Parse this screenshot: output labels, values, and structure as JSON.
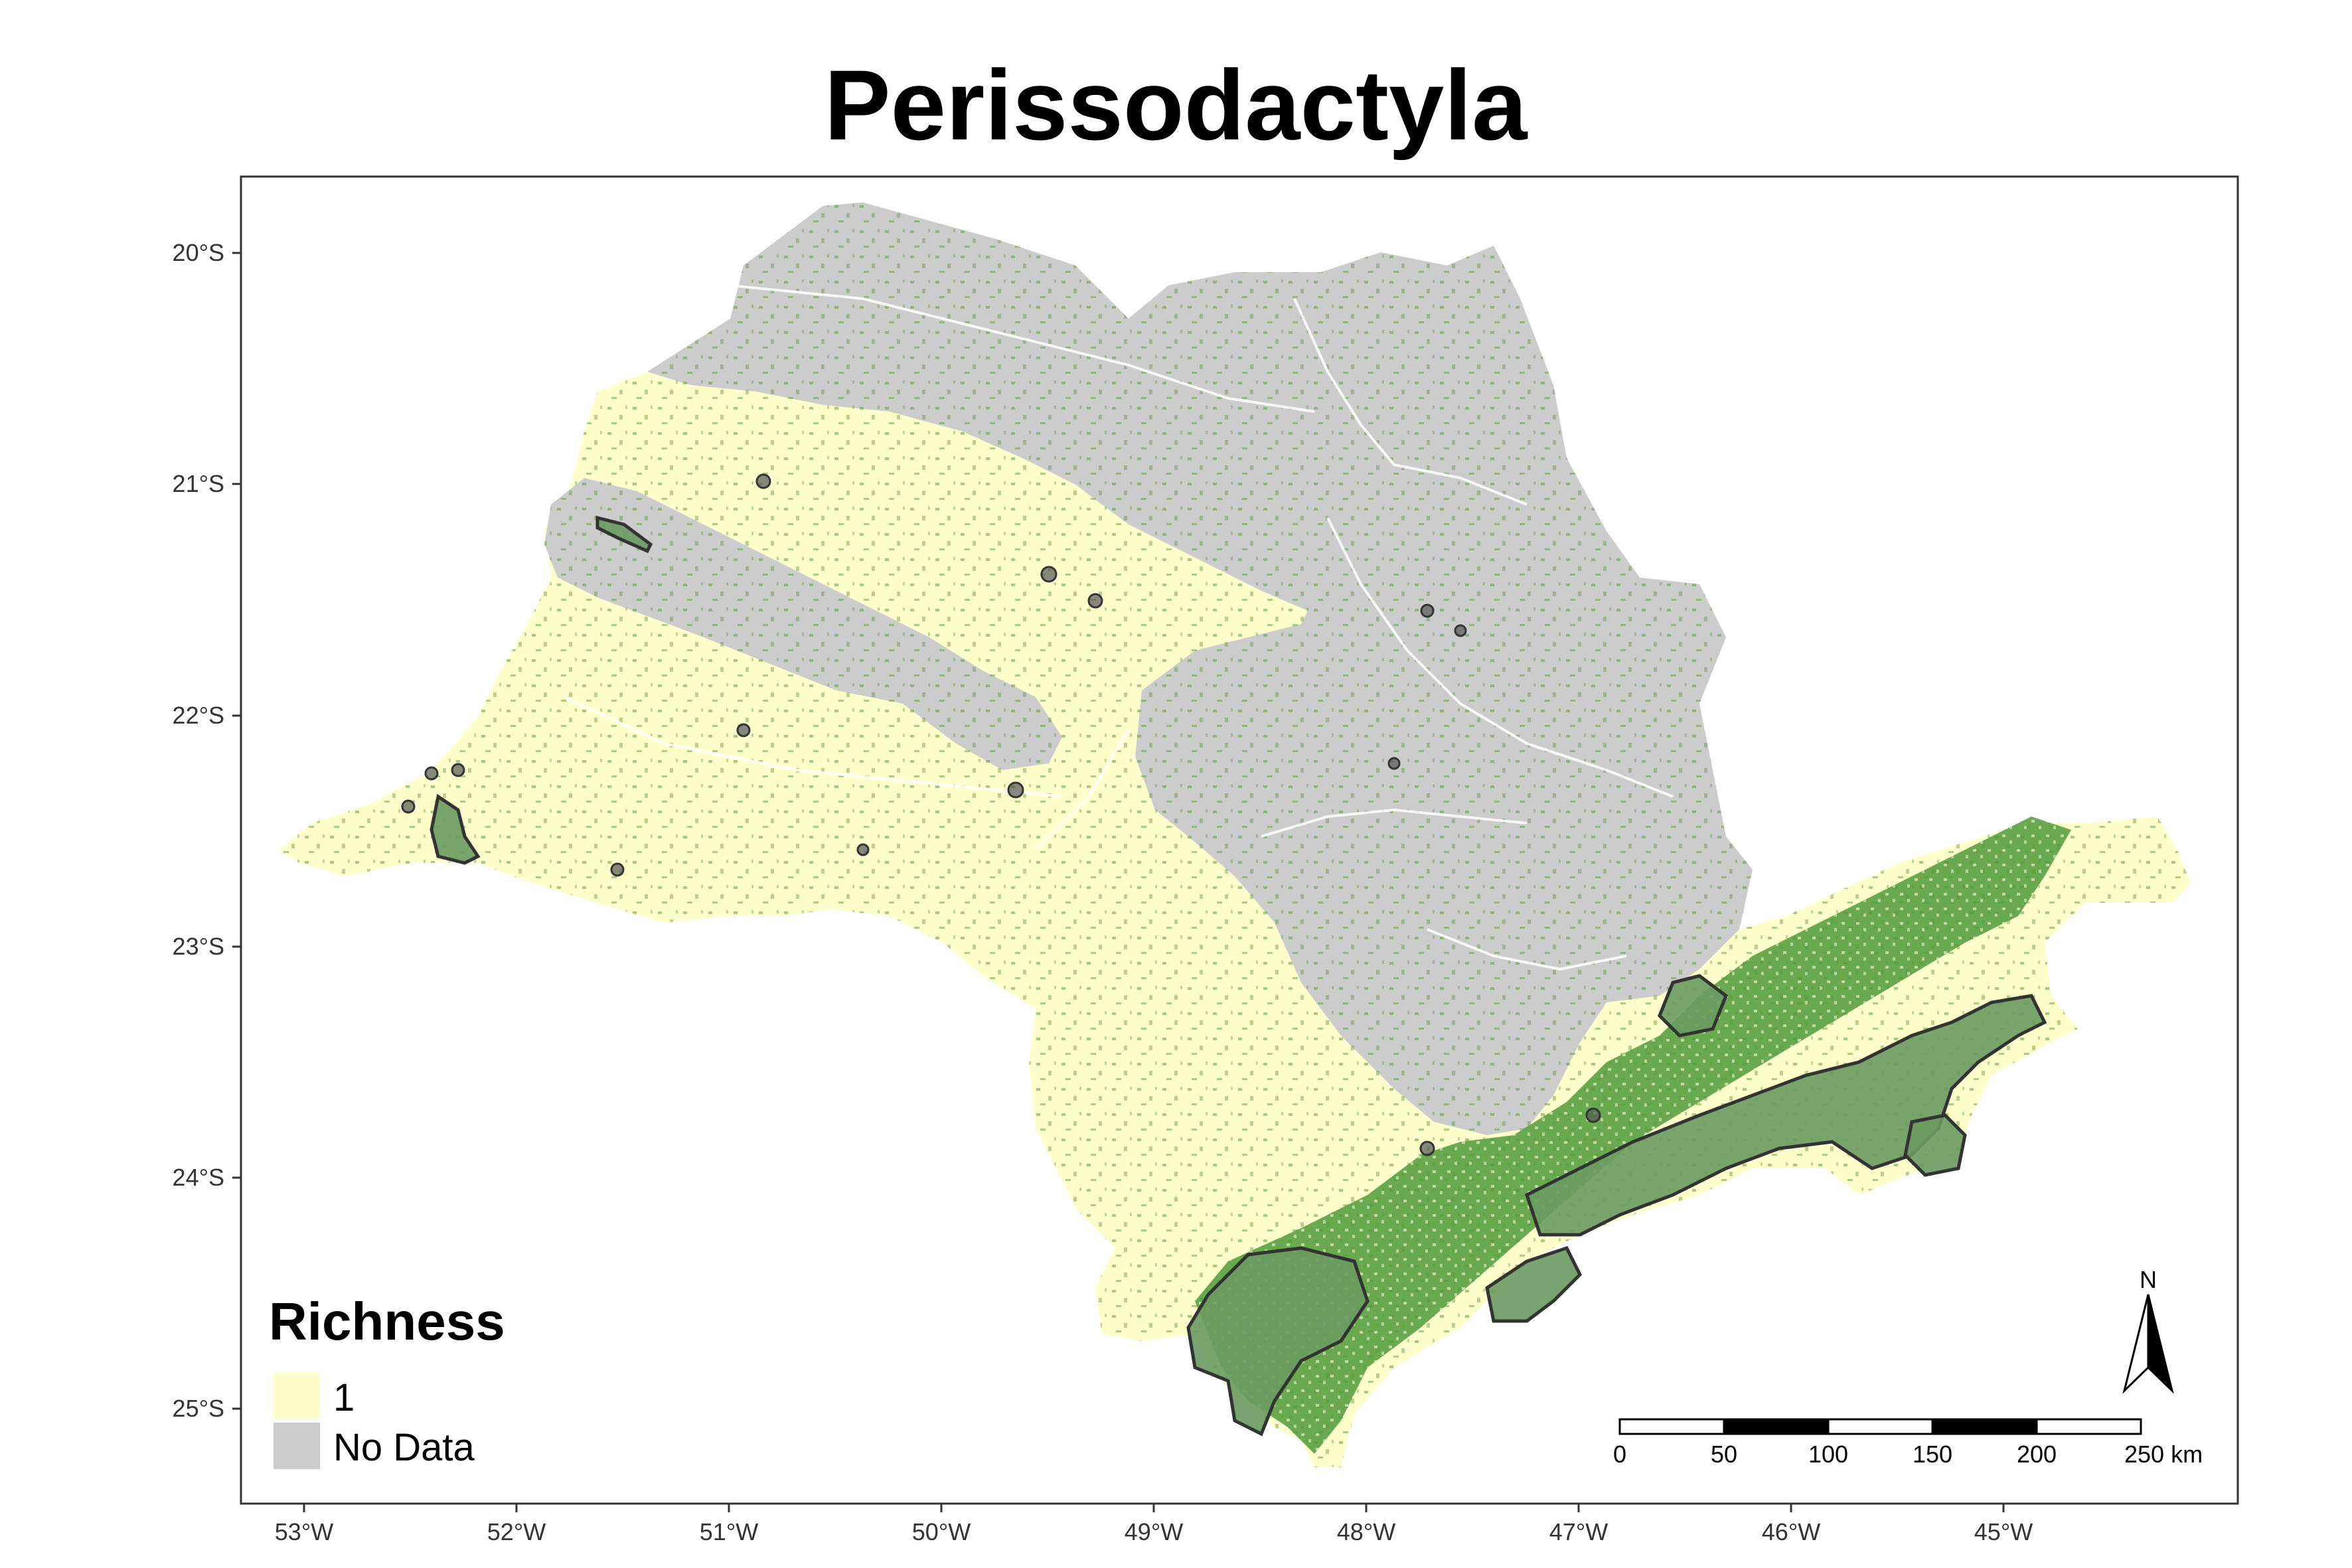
{
  "title": "Perissodactyla",
  "axes": {
    "x_ticks": [
      "53°W",
      "52°W",
      "51°W",
      "50°W",
      "49°W",
      "48°W",
      "47°W",
      "46°W",
      "45°W"
    ],
    "y_ticks": [
      "20°S",
      "21°S",
      "22°S",
      "23°S",
      "24°S",
      "25°S"
    ]
  },
  "legend": {
    "title": "Richness",
    "items": [
      {
        "label": "1",
        "color": "#ffffcc"
      },
      {
        "label": "No Data",
        "color": "#cccccc"
      }
    ]
  },
  "scale_bar": {
    "labels": [
      "0",
      "50",
      "100",
      "150",
      "200",
      "250 km"
    ]
  },
  "north_arrow": {
    "label": "N"
  },
  "colors": {
    "richness_1": "#ffffcc",
    "no_data": "#cccccc",
    "forest": "#4f9a3a",
    "protected_area": "#6a9a62",
    "protected_outline": "#333333"
  }
}
